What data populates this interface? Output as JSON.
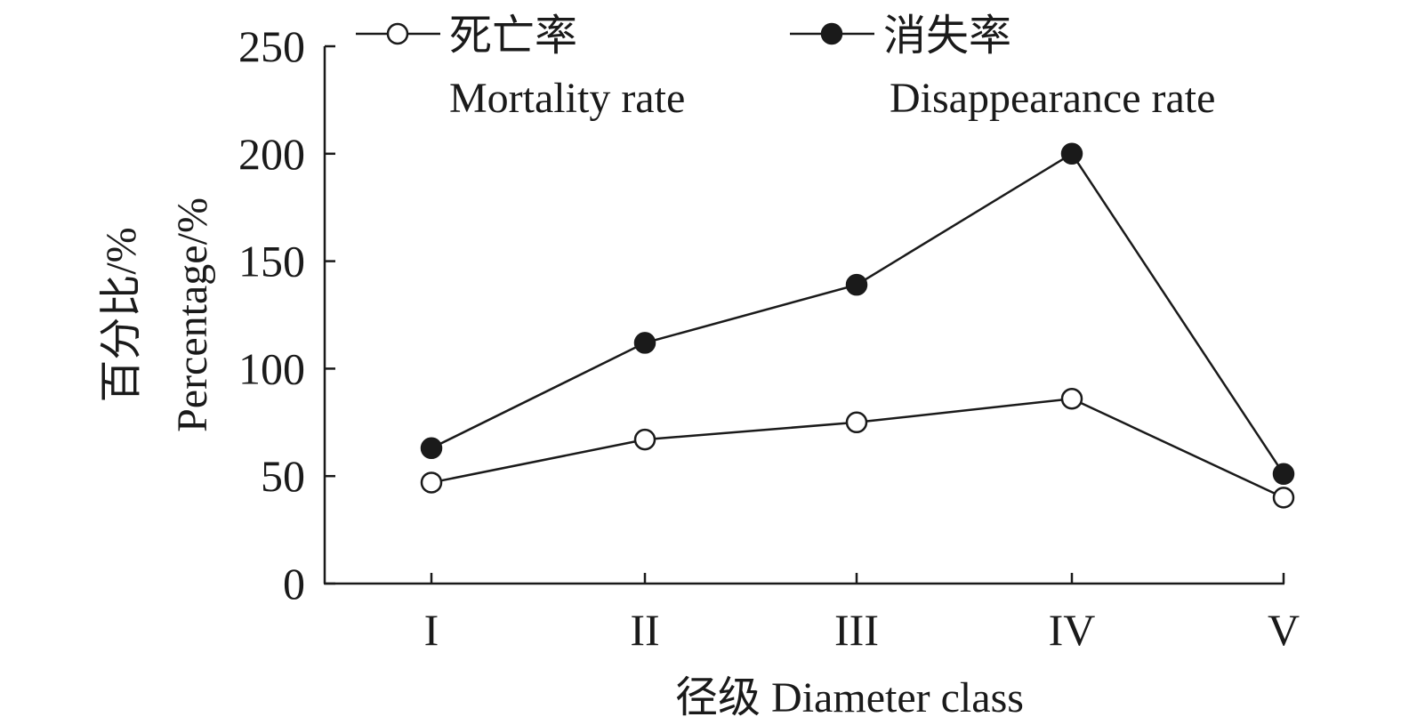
{
  "chart_data": {
    "type": "line",
    "categories": [
      "I",
      "II",
      "III",
      "IV",
      "V"
    ],
    "series": [
      {
        "name": "死亡率",
        "name_en": "Mortality rate",
        "marker": "open-circle",
        "values": [
          47,
          67,
          75,
          86,
          40
        ]
      },
      {
        "name": "消失率",
        "name_en": "Disappearance rate",
        "marker": "filled-circle",
        "values": [
          63,
          112,
          139,
          200,
          51
        ]
      }
    ],
    "ylim": [
      0,
      250
    ],
    "yticks": [
      "0",
      "50",
      "100",
      "150",
      "200",
      "250"
    ],
    "xlabel": "径级 Diameter class",
    "ylabel_cn": "百分比/%",
    "ylabel_en": "Percentage/%",
    "legend_position": "top",
    "grid": false,
    "colors": {
      "line": "#1a1a1a",
      "open_fill": "#ffffff",
      "filled": "#1a1a1a"
    }
  }
}
